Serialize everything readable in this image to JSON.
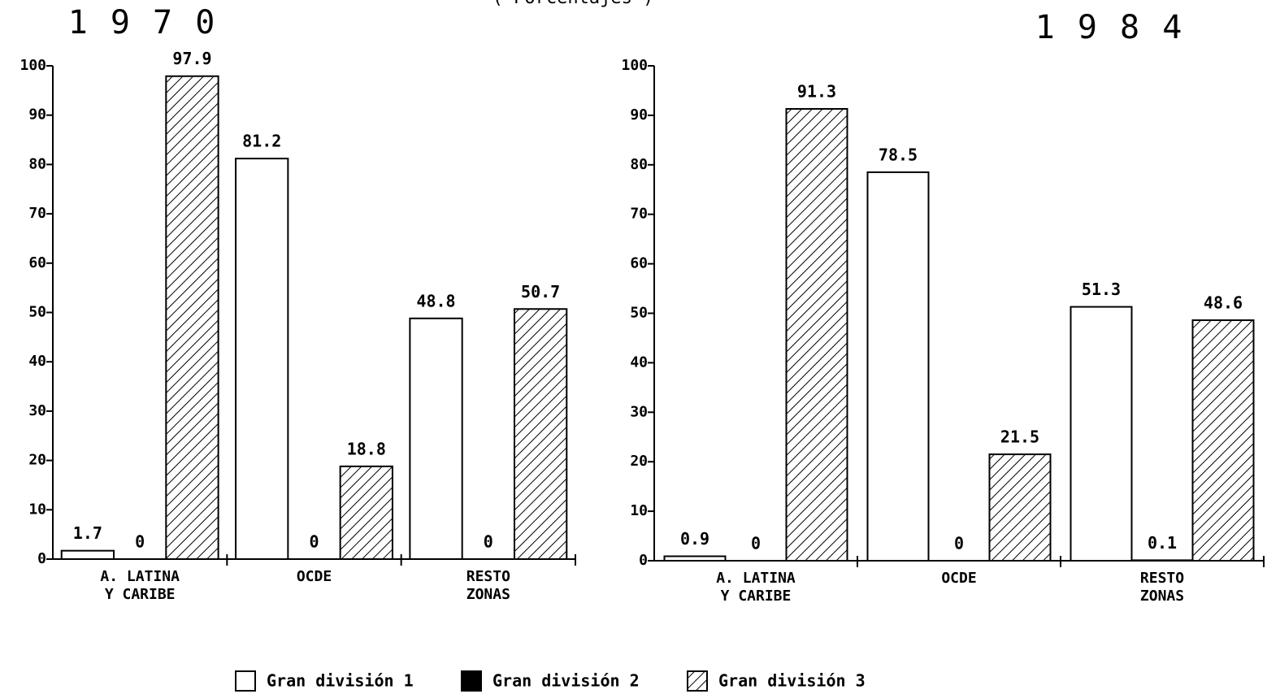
{
  "subtitle": "( Porcentajes )",
  "chart_data": [
    {
      "type": "bar",
      "title": "1 9 7 0",
      "categories": [
        "A. LATINA\nY CARIBE",
        "OCDE",
        "RESTO\nZONAS"
      ],
      "series": [
        {
          "name": "Gran división 1",
          "color": "#ffffff",
          "values": [
            1.7,
            81.2,
            48.8
          ]
        },
        {
          "name": "Gran división 2",
          "color": "#000000",
          "values": [
            0,
            0,
            0
          ]
        },
        {
          "name": "Gran división 3",
          "color": "hatch",
          "values": [
            97.9,
            18.8,
            50.7
          ]
        }
      ],
      "ylim": [
        0,
        100
      ],
      "yticks": [
        0,
        10,
        20,
        30,
        40,
        50,
        60,
        70,
        80,
        90,
        100
      ],
      "legend": "bottom"
    },
    {
      "type": "bar",
      "title": "1 9 8 4",
      "categories": [
        "A. LATINA\nY CARIBE",
        "OCDE",
        "RESTO\nZONAS"
      ],
      "series": [
        {
          "color": "#ffffff",
          "values": [
            0.9,
            78.5,
            51.3
          ]
        },
        {
          "color": "#000000",
          "values": [
            0,
            0,
            0.1
          ]
        },
        {
          "color": "hatch",
          "values": [
            91.3,
            21.5,
            48.6
          ]
        }
      ],
      "ylim": [
        0,
        100
      ],
      "yticks": [
        0,
        10,
        20,
        30,
        40,
        50,
        60,
        70,
        80,
        90,
        100
      ]
    }
  ]
}
